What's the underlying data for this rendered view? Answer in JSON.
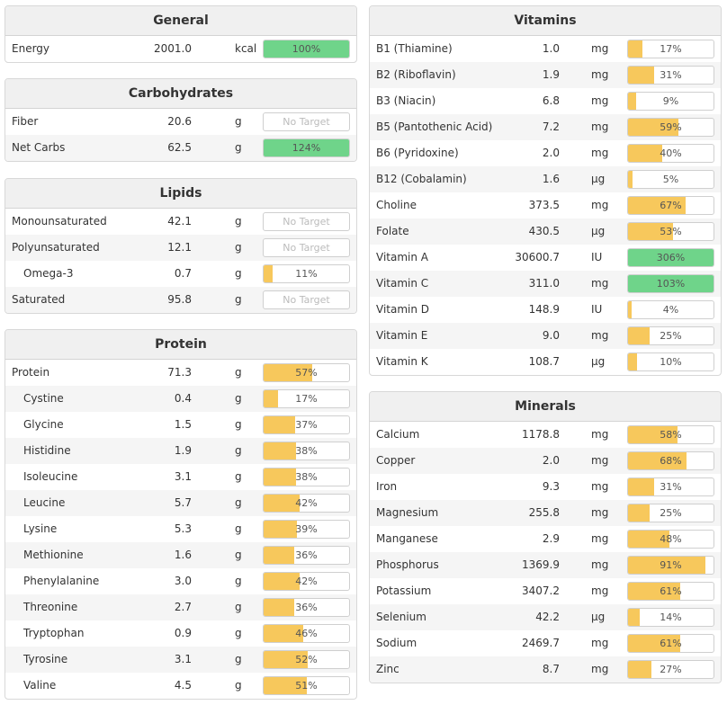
{
  "colors": {
    "partial": "#f7c85c",
    "complete": "#6fd48a"
  },
  "left_panels": [
    {
      "title": "General",
      "rows": [
        {
          "name": "Energy",
          "amount": "2001.0",
          "unit": "kcal",
          "target": "100%",
          "percent": 100,
          "indent": false
        }
      ]
    },
    {
      "title": "Carbohydrates",
      "rows": [
        {
          "name": "Fiber",
          "amount": "20.6",
          "unit": "g",
          "target": "No Target",
          "percent": null,
          "indent": false
        },
        {
          "name": "Net Carbs",
          "amount": "62.5",
          "unit": "g",
          "target": "124%",
          "percent": 124,
          "indent": false
        }
      ]
    },
    {
      "title": "Lipids",
      "rows": [
        {
          "name": "Monounsaturated",
          "amount": "42.1",
          "unit": "g",
          "target": "No Target",
          "percent": null,
          "indent": false
        },
        {
          "name": "Polyunsaturated",
          "amount": "12.1",
          "unit": "g",
          "target": "No Target",
          "percent": null,
          "indent": false
        },
        {
          "name": "Omega-3",
          "amount": "0.7",
          "unit": "g",
          "target": "11%",
          "percent": 11,
          "indent": true
        },
        {
          "name": "Saturated",
          "amount": "95.8",
          "unit": "g",
          "target": "No Target",
          "percent": null,
          "indent": false
        }
      ]
    },
    {
      "title": "Protein",
      "rows": [
        {
          "name": "Protein",
          "amount": "71.3",
          "unit": "g",
          "target": "57%",
          "percent": 57,
          "indent": false
        },
        {
          "name": "Cystine",
          "amount": "0.4",
          "unit": "g",
          "target": "17%",
          "percent": 17,
          "indent": true
        },
        {
          "name": "Glycine",
          "amount": "1.5",
          "unit": "g",
          "target": "37%",
          "percent": 37,
          "indent": true
        },
        {
          "name": "Histidine",
          "amount": "1.9",
          "unit": "g",
          "target": "38%",
          "percent": 38,
          "indent": true
        },
        {
          "name": "Isoleucine",
          "amount": "3.1",
          "unit": "g",
          "target": "38%",
          "percent": 38,
          "indent": true
        },
        {
          "name": "Leucine",
          "amount": "5.7",
          "unit": "g",
          "target": "42%",
          "percent": 42,
          "indent": true
        },
        {
          "name": "Lysine",
          "amount": "5.3",
          "unit": "g",
          "target": "39%",
          "percent": 39,
          "indent": true
        },
        {
          "name": "Methionine",
          "amount": "1.6",
          "unit": "g",
          "target": "36%",
          "percent": 36,
          "indent": true
        },
        {
          "name": "Phenylalanine",
          "amount": "3.0",
          "unit": "g",
          "target": "42%",
          "percent": 42,
          "indent": true
        },
        {
          "name": "Threonine",
          "amount": "2.7",
          "unit": "g",
          "target": "36%",
          "percent": 36,
          "indent": true
        },
        {
          "name": "Tryptophan",
          "amount": "0.9",
          "unit": "g",
          "target": "46%",
          "percent": 46,
          "indent": true
        },
        {
          "name": "Tyrosine",
          "amount": "3.1",
          "unit": "g",
          "target": "52%",
          "percent": 52,
          "indent": true
        },
        {
          "name": "Valine",
          "amount": "4.5",
          "unit": "g",
          "target": "51%",
          "percent": 51,
          "indent": true
        }
      ]
    }
  ],
  "right_panels": [
    {
      "title": "Vitamins",
      "rows": [
        {
          "name": "B1 (Thiamine)",
          "amount": "1.0",
          "unit": "mg",
          "target": "17%",
          "percent": 17,
          "indent": false
        },
        {
          "name": "B2 (Riboflavin)",
          "amount": "1.9",
          "unit": "mg",
          "target": "31%",
          "percent": 31,
          "indent": false
        },
        {
          "name": "B3 (Niacin)",
          "amount": "6.8",
          "unit": "mg",
          "target": "9%",
          "percent": 9,
          "indent": false
        },
        {
          "name": "B5 (Pantothenic Acid)",
          "amount": "7.2",
          "unit": "mg",
          "target": "59%",
          "percent": 59,
          "indent": false
        },
        {
          "name": "B6 (Pyridoxine)",
          "amount": "2.0",
          "unit": "mg",
          "target": "40%",
          "percent": 40,
          "indent": false
        },
        {
          "name": "B12 (Cobalamin)",
          "amount": "1.6",
          "unit": "µg",
          "target": "5%",
          "percent": 5,
          "indent": false
        },
        {
          "name": "Choline",
          "amount": "373.5",
          "unit": "mg",
          "target": "67%",
          "percent": 67,
          "indent": false
        },
        {
          "name": "Folate",
          "amount": "430.5",
          "unit": "µg",
          "target": "53%",
          "percent": 53,
          "indent": false
        },
        {
          "name": "Vitamin A",
          "amount": "30600.7",
          "unit": "IU",
          "target": "306%",
          "percent": 306,
          "indent": false
        },
        {
          "name": "Vitamin C",
          "amount": "311.0",
          "unit": "mg",
          "target": "103%",
          "percent": 103,
          "indent": false
        },
        {
          "name": "Vitamin D",
          "amount": "148.9",
          "unit": "IU",
          "target": "4%",
          "percent": 4,
          "indent": false
        },
        {
          "name": "Vitamin E",
          "amount": "9.0",
          "unit": "mg",
          "target": "25%",
          "percent": 25,
          "indent": false
        },
        {
          "name": "Vitamin K",
          "amount": "108.7",
          "unit": "µg",
          "target": "10%",
          "percent": 10,
          "indent": false
        }
      ]
    },
    {
      "title": "Minerals",
      "rows": [
        {
          "name": "Calcium",
          "amount": "1178.8",
          "unit": "mg",
          "target": "58%",
          "percent": 58,
          "indent": false
        },
        {
          "name": "Copper",
          "amount": "2.0",
          "unit": "mg",
          "target": "68%",
          "percent": 68,
          "indent": false
        },
        {
          "name": "Iron",
          "amount": "9.3",
          "unit": "mg",
          "target": "31%",
          "percent": 31,
          "indent": false
        },
        {
          "name": "Magnesium",
          "amount": "255.8",
          "unit": "mg",
          "target": "25%",
          "percent": 25,
          "indent": false
        },
        {
          "name": "Manganese",
          "amount": "2.9",
          "unit": "mg",
          "target": "48%",
          "percent": 48,
          "indent": false
        },
        {
          "name": "Phosphorus",
          "amount": "1369.9",
          "unit": "mg",
          "target": "91%",
          "percent": 91,
          "indent": false
        },
        {
          "name": "Potassium",
          "amount": "3407.2",
          "unit": "mg",
          "target": "61%",
          "percent": 61,
          "indent": false
        },
        {
          "name": "Selenium",
          "amount": "42.2",
          "unit": "µg",
          "target": "14%",
          "percent": 14,
          "indent": false
        },
        {
          "name": "Sodium",
          "amount": "2469.7",
          "unit": "mg",
          "target": "61%",
          "percent": 61,
          "indent": false
        },
        {
          "name": "Zinc",
          "amount": "8.7",
          "unit": "mg",
          "target": "27%",
          "percent": 27,
          "indent": false
        }
      ]
    }
  ]
}
